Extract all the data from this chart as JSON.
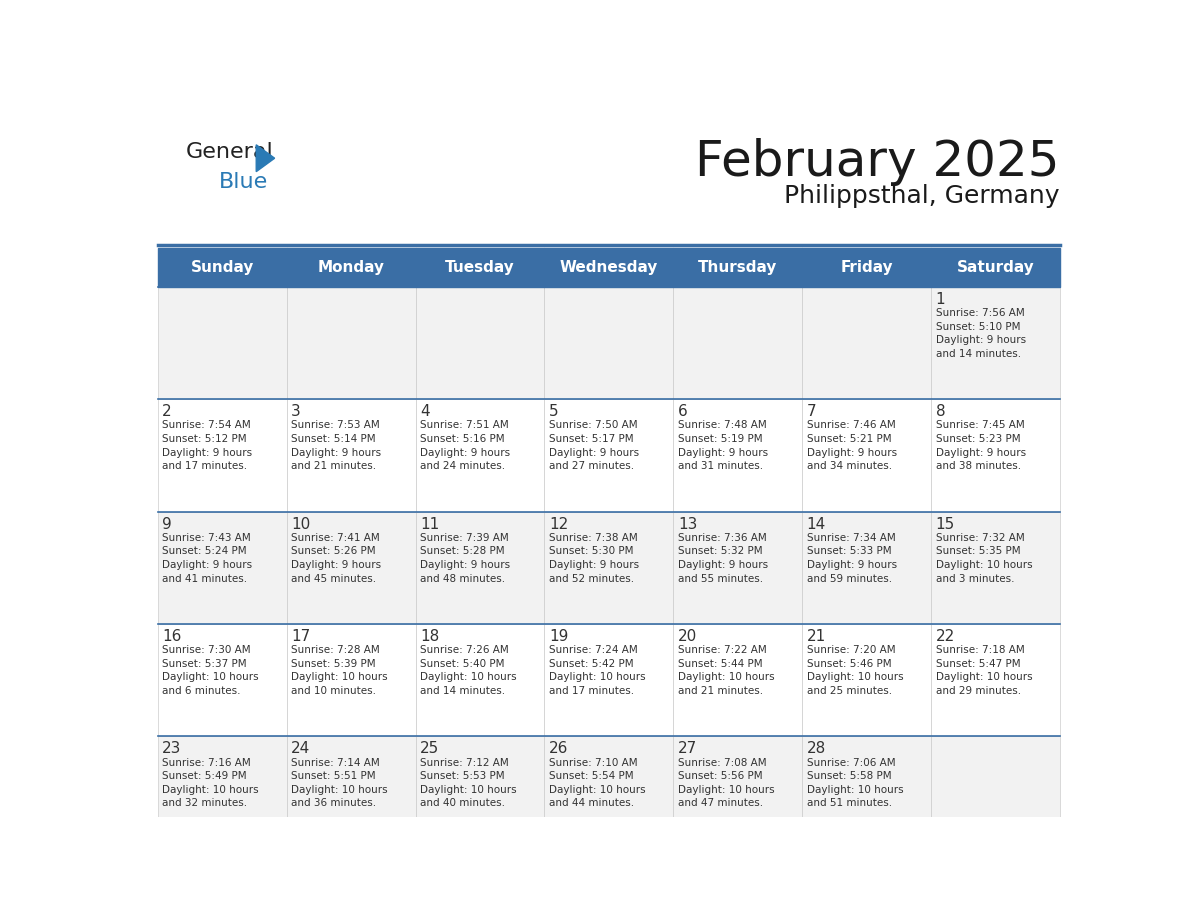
{
  "title": "February 2025",
  "subtitle": "Philippsthal, Germany",
  "header_color": "#3A6EA5",
  "header_text_color": "#FFFFFF",
  "day_names": [
    "Sunday",
    "Monday",
    "Tuesday",
    "Wednesday",
    "Thursday",
    "Friday",
    "Saturday"
  ],
  "cell_bg_even": "#F2F2F2",
  "cell_bg_odd": "#FFFFFF",
  "day_number_color": "#333333",
  "info_text_color": "#333333",
  "logo_general_color": "#222222",
  "logo_blue_color": "#2A7AB5",
  "weeks": [
    [
      {
        "day": null,
        "info": ""
      },
      {
        "day": null,
        "info": ""
      },
      {
        "day": null,
        "info": ""
      },
      {
        "day": null,
        "info": ""
      },
      {
        "day": null,
        "info": ""
      },
      {
        "day": null,
        "info": ""
      },
      {
        "day": 1,
        "info": "Sunrise: 7:56 AM\nSunset: 5:10 PM\nDaylight: 9 hours\nand 14 minutes."
      }
    ],
    [
      {
        "day": 2,
        "info": "Sunrise: 7:54 AM\nSunset: 5:12 PM\nDaylight: 9 hours\nand 17 minutes."
      },
      {
        "day": 3,
        "info": "Sunrise: 7:53 AM\nSunset: 5:14 PM\nDaylight: 9 hours\nand 21 minutes."
      },
      {
        "day": 4,
        "info": "Sunrise: 7:51 AM\nSunset: 5:16 PM\nDaylight: 9 hours\nand 24 minutes."
      },
      {
        "day": 5,
        "info": "Sunrise: 7:50 AM\nSunset: 5:17 PM\nDaylight: 9 hours\nand 27 minutes."
      },
      {
        "day": 6,
        "info": "Sunrise: 7:48 AM\nSunset: 5:19 PM\nDaylight: 9 hours\nand 31 minutes."
      },
      {
        "day": 7,
        "info": "Sunrise: 7:46 AM\nSunset: 5:21 PM\nDaylight: 9 hours\nand 34 minutes."
      },
      {
        "day": 8,
        "info": "Sunrise: 7:45 AM\nSunset: 5:23 PM\nDaylight: 9 hours\nand 38 minutes."
      }
    ],
    [
      {
        "day": 9,
        "info": "Sunrise: 7:43 AM\nSunset: 5:24 PM\nDaylight: 9 hours\nand 41 minutes."
      },
      {
        "day": 10,
        "info": "Sunrise: 7:41 AM\nSunset: 5:26 PM\nDaylight: 9 hours\nand 45 minutes."
      },
      {
        "day": 11,
        "info": "Sunrise: 7:39 AM\nSunset: 5:28 PM\nDaylight: 9 hours\nand 48 minutes."
      },
      {
        "day": 12,
        "info": "Sunrise: 7:38 AM\nSunset: 5:30 PM\nDaylight: 9 hours\nand 52 minutes."
      },
      {
        "day": 13,
        "info": "Sunrise: 7:36 AM\nSunset: 5:32 PM\nDaylight: 9 hours\nand 55 minutes."
      },
      {
        "day": 14,
        "info": "Sunrise: 7:34 AM\nSunset: 5:33 PM\nDaylight: 9 hours\nand 59 minutes."
      },
      {
        "day": 15,
        "info": "Sunrise: 7:32 AM\nSunset: 5:35 PM\nDaylight: 10 hours\nand 3 minutes."
      }
    ],
    [
      {
        "day": 16,
        "info": "Sunrise: 7:30 AM\nSunset: 5:37 PM\nDaylight: 10 hours\nand 6 minutes."
      },
      {
        "day": 17,
        "info": "Sunrise: 7:28 AM\nSunset: 5:39 PM\nDaylight: 10 hours\nand 10 minutes."
      },
      {
        "day": 18,
        "info": "Sunrise: 7:26 AM\nSunset: 5:40 PM\nDaylight: 10 hours\nand 14 minutes."
      },
      {
        "day": 19,
        "info": "Sunrise: 7:24 AM\nSunset: 5:42 PM\nDaylight: 10 hours\nand 17 minutes."
      },
      {
        "day": 20,
        "info": "Sunrise: 7:22 AM\nSunset: 5:44 PM\nDaylight: 10 hours\nand 21 minutes."
      },
      {
        "day": 21,
        "info": "Sunrise: 7:20 AM\nSunset: 5:46 PM\nDaylight: 10 hours\nand 25 minutes."
      },
      {
        "day": 22,
        "info": "Sunrise: 7:18 AM\nSunset: 5:47 PM\nDaylight: 10 hours\nand 29 minutes."
      }
    ],
    [
      {
        "day": 23,
        "info": "Sunrise: 7:16 AM\nSunset: 5:49 PM\nDaylight: 10 hours\nand 32 minutes."
      },
      {
        "day": 24,
        "info": "Sunrise: 7:14 AM\nSunset: 5:51 PM\nDaylight: 10 hours\nand 36 minutes."
      },
      {
        "day": 25,
        "info": "Sunrise: 7:12 AM\nSunset: 5:53 PM\nDaylight: 10 hours\nand 40 minutes."
      },
      {
        "day": 26,
        "info": "Sunrise: 7:10 AM\nSunset: 5:54 PM\nDaylight: 10 hours\nand 44 minutes."
      },
      {
        "day": 27,
        "info": "Sunrise: 7:08 AM\nSunset: 5:56 PM\nDaylight: 10 hours\nand 47 minutes."
      },
      {
        "day": 28,
        "info": "Sunrise: 7:06 AM\nSunset: 5:58 PM\nDaylight: 10 hours\nand 51 minutes."
      },
      {
        "day": null,
        "info": ""
      }
    ]
  ]
}
